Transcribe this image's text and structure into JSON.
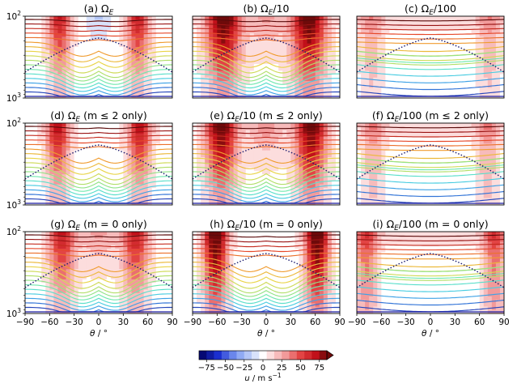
{
  "chart_data": {
    "type": "heatmap",
    "description_kind": "3x3 grid of latitude-pressure panels: filled zonal wind with temperature contours",
    "x_axis": {
      "label": "θ / °",
      "label_parts": {
        "symbol": "θ",
        "unit": " / °"
      },
      "range": [
        -90,
        90
      ],
      "ticks": [
        "−90",
        "−60",
        "−30",
        "0",
        "30",
        "60",
        "90"
      ]
    },
    "y_axis": {
      "scale": "log",
      "ticks": [
        {
          "base": "10",
          "exp": "2"
        },
        {
          "base": "10",
          "exp": "3"
        }
      ]
    },
    "panels": [
      {
        "letter": "(a)",
        "omega": "Ω",
        "sub": "E",
        "suffix": "",
        "row": 0,
        "col": 0
      },
      {
        "letter": "(b)",
        "omega": "Ω",
        "sub": "E",
        "suffix": "/10",
        "row": 0,
        "col": 1
      },
      {
        "letter": "(c)",
        "omega": "Ω",
        "sub": "E",
        "suffix": "/100",
        "row": 0,
        "col": 2
      },
      {
        "letter": "(d)",
        "omega": "Ω",
        "sub": "E",
        "suffix": " (m ≤ 2 only)",
        "row": 1,
        "col": 0
      },
      {
        "letter": "(e)",
        "omega": "Ω",
        "sub": "E",
        "suffix": "/10 (m ≤ 2 only)",
        "row": 1,
        "col": 1
      },
      {
        "letter": "(f)",
        "omega": "Ω",
        "sub": "E",
        "suffix": "/100 (m ≤ 2 only)",
        "row": 1,
        "col": 2
      },
      {
        "letter": "(g)",
        "omega": "Ω",
        "sub": "E",
        "suffix": " (m = 0 only)",
        "row": 2,
        "col": 0
      },
      {
        "letter": "(h)",
        "omega": "Ω",
        "sub": "E",
        "suffix": "/10 (m = 0 only)",
        "row": 2,
        "col": 1
      },
      {
        "letter": "(i)",
        "omega": "Ω",
        "sub": "E",
        "suffix": "/100 (m = 0 only)",
        "row": 2,
        "col": 2
      }
    ],
    "colorbar": {
      "ticks": [
        -75,
        -50,
        -25,
        0,
        25,
        50,
        75
      ],
      "tick_labels": [
        "−75",
        "−50",
        "−25",
        "0",
        "25",
        "50",
        "75"
      ],
      "range": [
        -85,
        85
      ],
      "label": "u / m s⁻¹",
      "label_parts": {
        "symbol": "u",
        "unit": " / m s",
        "exp": "−1"
      },
      "extend": "max"
    },
    "colors": {
      "strong_negative": "#08086a",
      "negative": "#4a6de0",
      "zero": "#ffffff",
      "positive": "#f4a6a6",
      "strong_positive": "#8a0f0f"
    }
  }
}
